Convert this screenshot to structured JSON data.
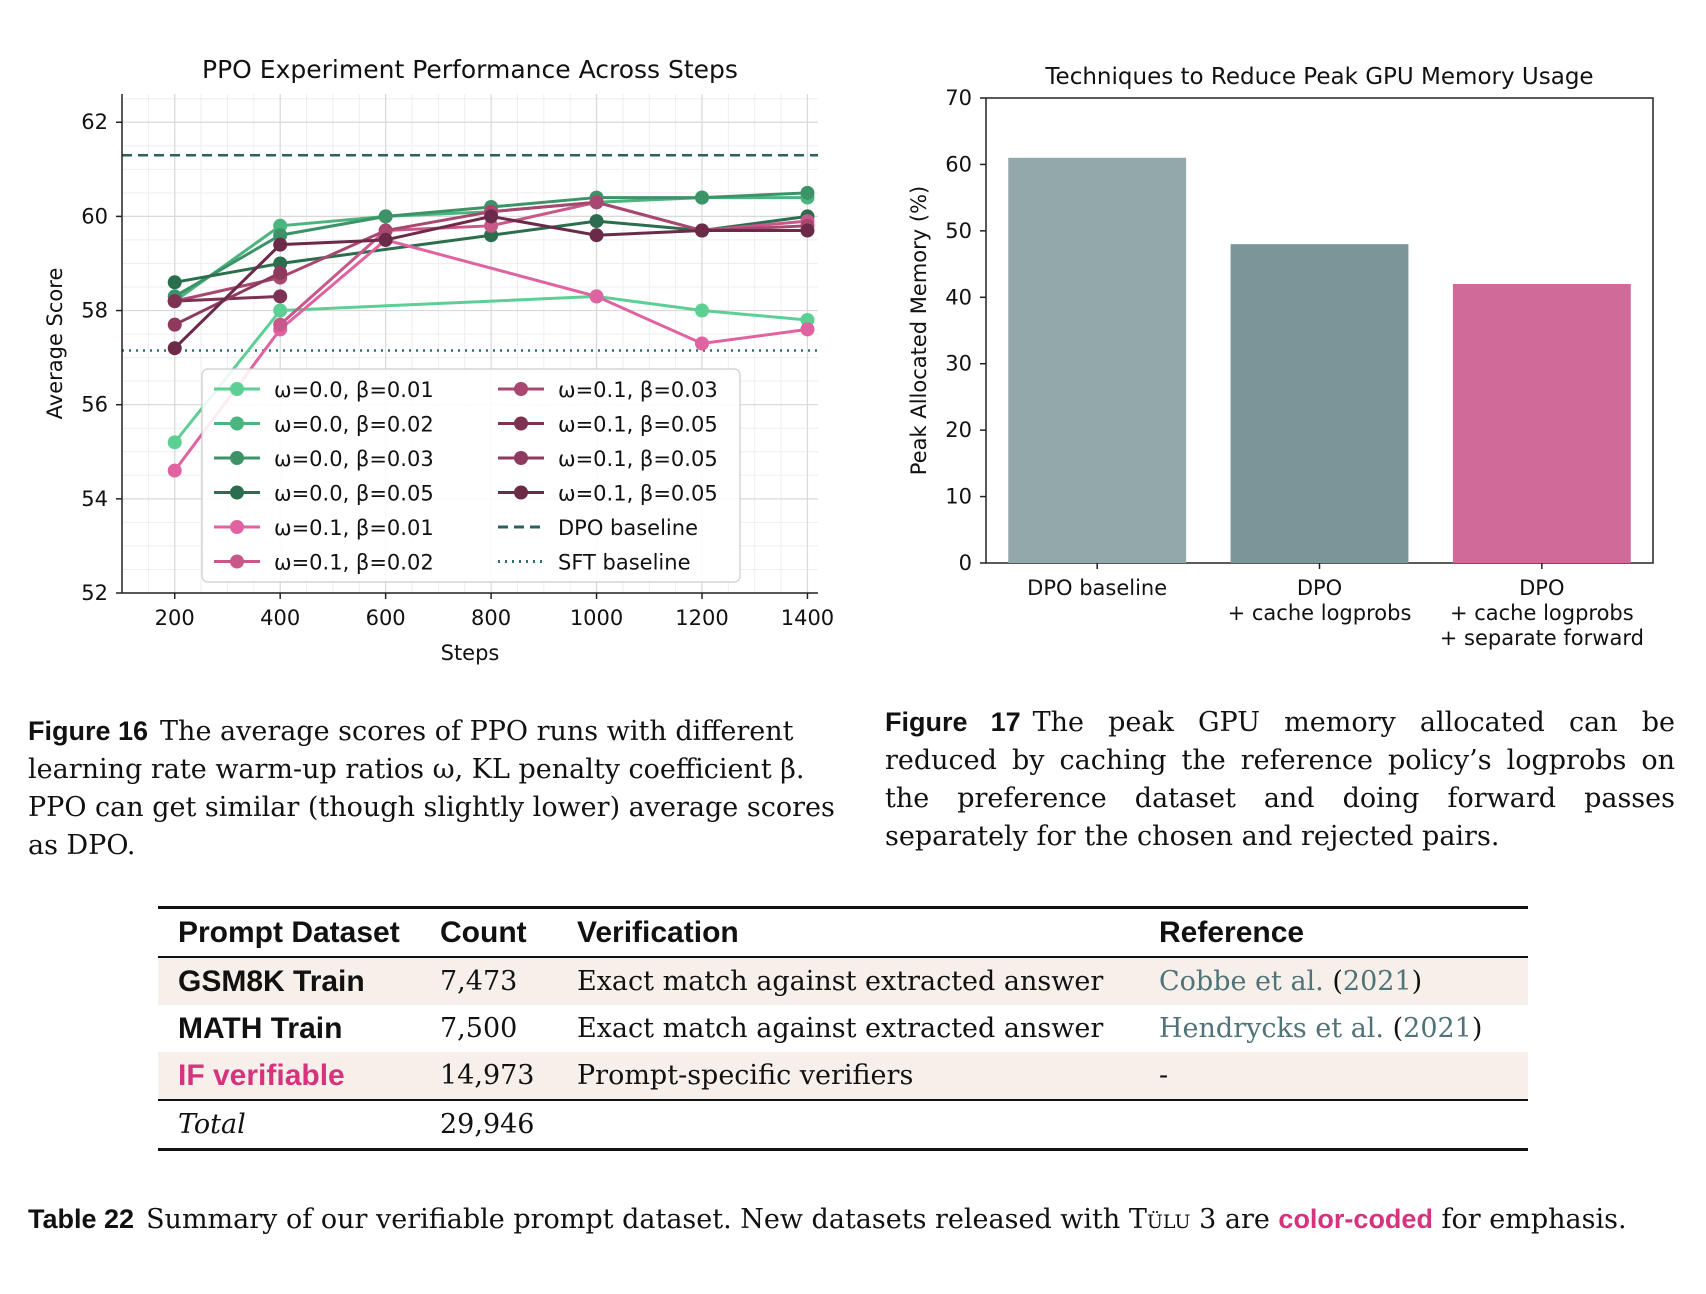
{
  "figure16": {
    "caption_label": "Figure 16",
    "caption_text": "The average scores of PPO runs with different learning rate warm-up ratios ω, KL penalty coefficient β. PPO can get similar (though slightly lower) average scores as DPO."
  },
  "figure17": {
    "caption_label": "Figure 17",
    "caption_text": "The peak GPU memory allocated can be reduced by caching the reference policy’s logprobs on the preference dataset and doing forward passes separately for the chosen and rejected pairs."
  },
  "table22": {
    "caption_label": "Table 22",
    "caption_text_before": "Summary of our verifiable prompt dataset. New datasets released with ",
    "caption_tulu": "Tülu",
    "caption_text_middle": " 3 are ",
    "caption_colorcoded": "color-coded",
    "caption_text_after": " for emphasis.",
    "headers": [
      "Prompt Dataset",
      "Count",
      "Verification",
      "Reference"
    ],
    "rows": [
      {
        "dataset": "GSM8K Train",
        "count": "7,473",
        "verification": "Exact match against extracted answer",
        "ref_name": "Cobbe et al.",
        "ref_year": "2021"
      },
      {
        "dataset": "MATH Train",
        "count": "7,500",
        "verification": "Exact match against extracted answer",
        "ref_name": "Hendrycks et al.",
        "ref_year": "2021"
      },
      {
        "dataset": "IF verifiable",
        "count": "14,973",
        "verification": "Prompt-specific verifiers",
        "ref_dash": "-"
      }
    ],
    "total_label": "Total",
    "total_count": "29,946"
  },
  "chart_data": [
    {
      "type": "line",
      "title": "PPO Experiment Performance Across Steps",
      "xlabel": "Steps",
      "ylabel": "Average Score",
      "xlim": [
        100,
        1420
      ],
      "ylim": [
        52,
        62.6
      ],
      "xticks": [
        200,
        400,
        600,
        800,
        1000,
        1200,
        1400
      ],
      "yticks": [
        52,
        54,
        56,
        58,
        60,
        62
      ],
      "grid": true,
      "legend": "lower-right",
      "series": [
        {
          "name": "ω=0.0, β=0.01",
          "color": "#5ccf94",
          "x": [
            200,
            400,
            1000,
            1200,
            1400
          ],
          "y": [
            55.2,
            58.0,
            58.3,
            58.0,
            57.8
          ]
        },
        {
          "name": "ω=0.0, β=0.02",
          "color": "#4bb57f",
          "x": [
            200,
            400,
            600,
            800,
            1000,
            1200,
            1400
          ],
          "y": [
            58.2,
            59.8,
            60.0,
            60.1,
            60.3,
            60.4,
            60.4
          ]
        },
        {
          "name": "ω=0.0, β=0.03",
          "color": "#3d9368",
          "x": [
            200,
            400,
            600,
            800,
            1000,
            1200,
            1400
          ],
          "y": [
            58.3,
            59.6,
            60.0,
            60.2,
            60.4,
            60.4,
            60.5
          ]
        },
        {
          "name": "ω=0.0, β=0.05",
          "color": "#2a6e4d",
          "x": [
            200,
            400,
            800,
            1000,
            1200,
            1400
          ],
          "y": [
            58.6,
            59.0,
            59.6,
            59.9,
            59.7,
            60.0
          ]
        },
        {
          "name": "ω=0.1, β=0.01",
          "color": "#e062a0",
          "x": [
            200,
            400,
            600,
            1000,
            1200,
            1400
          ],
          "y": [
            54.6,
            57.6,
            59.5,
            58.3,
            57.3,
            57.6
          ]
        },
        {
          "name": "ω=0.1, β=0.02",
          "color": "#c8588a",
          "x": [
            400,
            600,
            800,
            1000,
            1200,
            1400
          ],
          "y": [
            57.7,
            59.7,
            59.8,
            60.3,
            59.7,
            59.9
          ]
        },
        {
          "name": "ω=0.1, β=0.03",
          "color": "#a8476f",
          "x": [
            200,
            400,
            600,
            800,
            1000,
            1200,
            1400
          ],
          "y": [
            58.2,
            58.7,
            59.7,
            60.1,
            60.3,
            59.7,
            59.8
          ]
        },
        {
          "name": "ω=0.1, β=0.05",
          "color": "#7d3252",
          "x": [
            200,
            400
          ],
          "y": [
            58.2,
            58.3
          ]
        },
        {
          "name": "ω=0.1, β=0.05",
          "color": "#8e3a5f",
          "x": [
            200,
            400
          ],
          "y": [
            57.7,
            58.8
          ]
        },
        {
          "name": "ω=0.1, β=0.05",
          "color": "#6b2a48",
          "x": [
            200,
            400,
            600,
            800,
            1000,
            1200,
            1400
          ],
          "y": [
            57.2,
            59.4,
            59.5,
            60.0,
            59.6,
            59.7,
            59.7
          ]
        }
      ],
      "reference_lines": [
        {
          "name": "DPO baseline",
          "y": 61.3,
          "style": "dashed",
          "color": "#2f5f5f"
        },
        {
          "name": "SFT baseline",
          "y": 57.15,
          "style": "dotted",
          "color": "#2f6f6a"
        }
      ]
    },
    {
      "type": "bar",
      "title": "Techniques to Reduce Peak GPU Memory Usage",
      "ylabel": "Peak Allocated Memory (%)",
      "ylim": [
        0,
        70
      ],
      "yticks": [
        0,
        10,
        20,
        30,
        40,
        50,
        60,
        70
      ],
      "categories": [
        "DPO baseline",
        "DPO\n+ cache logprobs",
        "DPO\n+ cache logprobs\n+ separate forward"
      ],
      "values": [
        61,
        48,
        42
      ],
      "colors": [
        "#93a8ab",
        "#7b9698",
        "#d06a98"
      ]
    }
  ]
}
